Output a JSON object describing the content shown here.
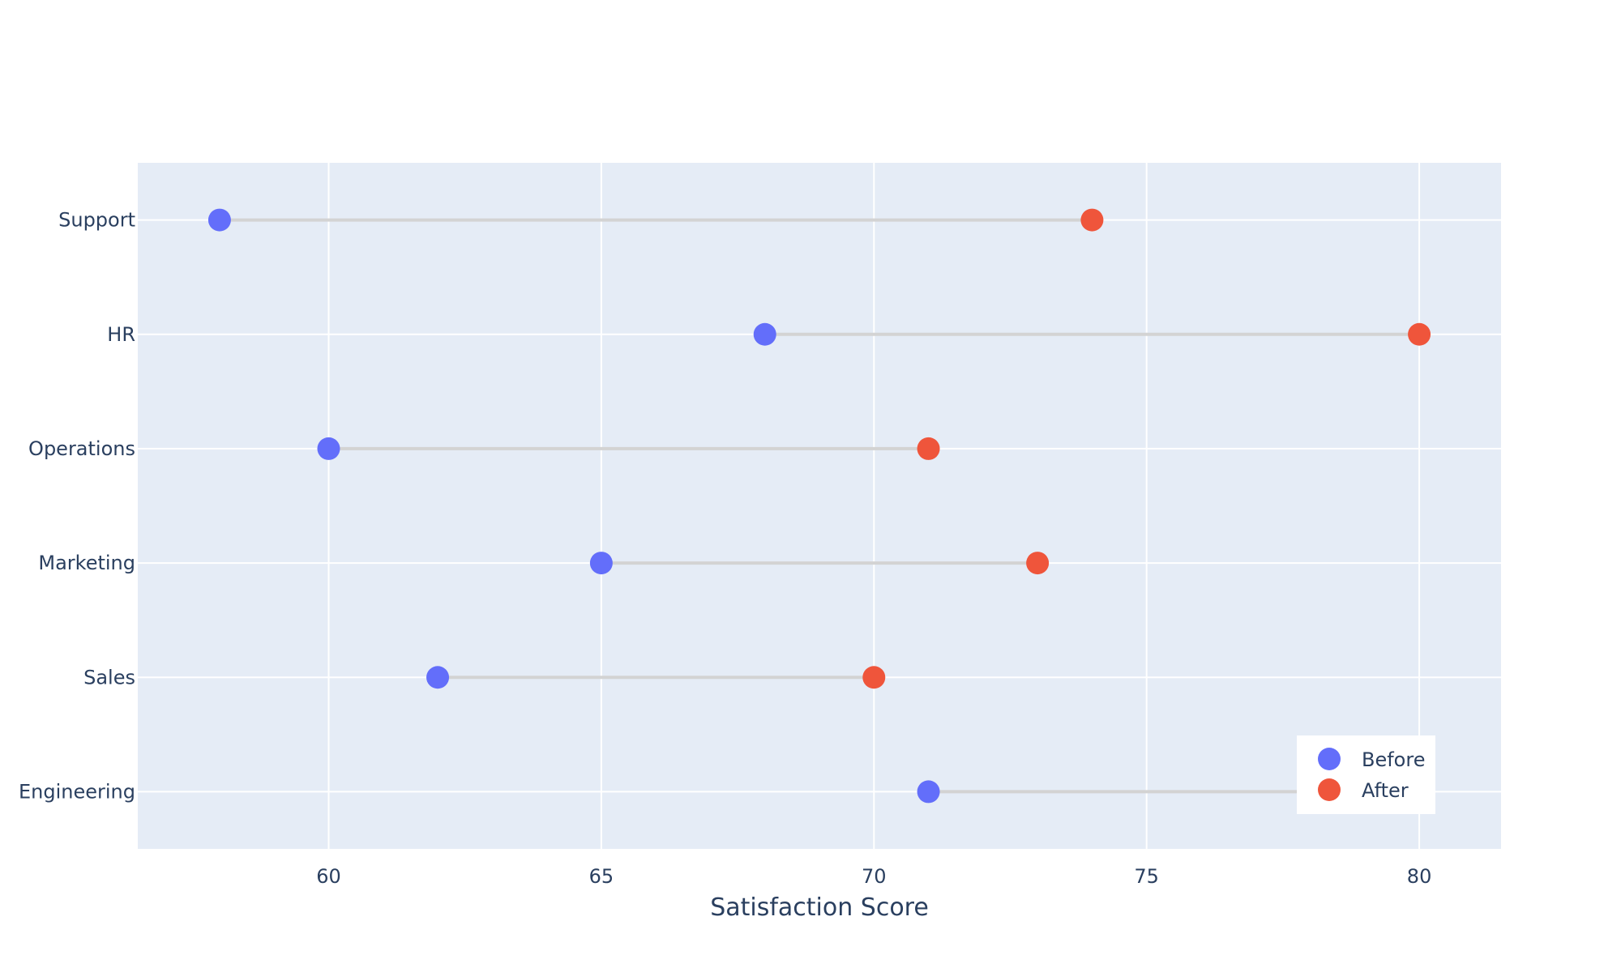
{
  "chart_data": {
    "type": "dumbbell",
    "title": "",
    "xlabel": "Satisfaction Score",
    "ylabel": "",
    "xlim": [
      56.5,
      81.5
    ],
    "xticks": [
      60,
      65,
      70,
      75,
      80
    ],
    "categories": [
      "Engineering",
      "Sales",
      "Marketing",
      "Operations",
      "HR",
      "Support"
    ],
    "series": [
      {
        "name": "Before",
        "color": "#636efa",
        "values": [
          71,
          62,
          65,
          60,
          68,
          58
        ]
      },
      {
        "name": "After",
        "color": "#ef553b",
        "values": [
          80,
          70,
          73,
          71,
          80,
          74
        ]
      }
    ],
    "connector_color": "#d3d3d3",
    "grid": true,
    "legend": {
      "position": "bottom-right",
      "entries": [
        "Before",
        "After"
      ]
    },
    "plot_background": "#e5ecf6"
  }
}
